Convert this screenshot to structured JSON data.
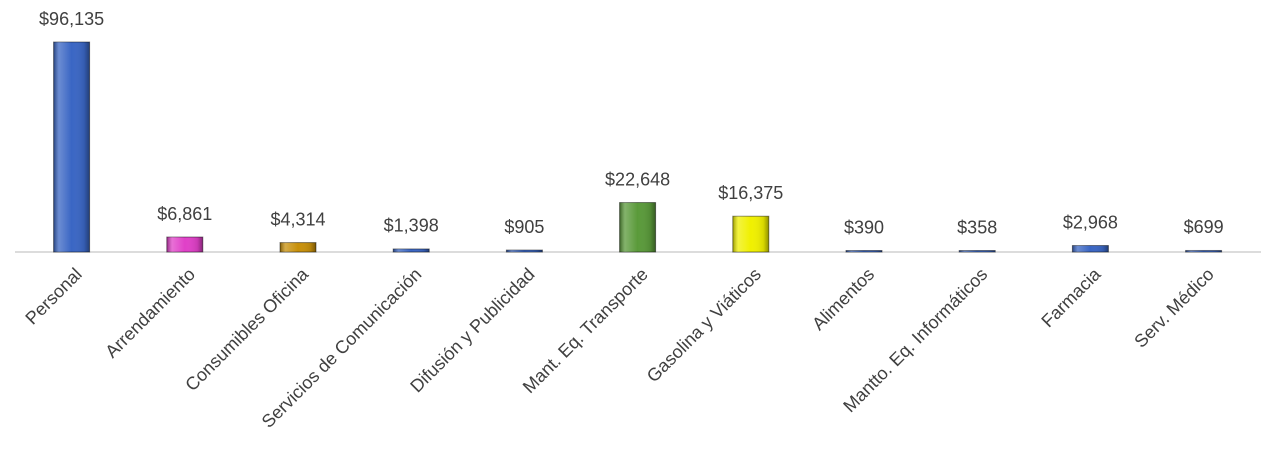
{
  "chart_data": {
    "type": "bar",
    "categories": [
      "Personal",
      "Arrendamiento",
      "Consumibles Oficina",
      "Servicios de Comunicación",
      "Difusión y Publicidad",
      "Mant. Eq. Transporte",
      "Gasolina y Viáticos",
      "Alimentos",
      "Mantto. Eq. Informáticos",
      "Farmacia",
      "Serv. Médico"
    ],
    "values": [
      96135,
      6861,
      4314,
      1398,
      905,
      22648,
      16375,
      390,
      358,
      2968,
      699
    ],
    "value_labels": [
      "$96,135",
      "$6,861",
      "$4,314",
      "$1,398",
      "$905",
      "$22,648",
      "$16,375",
      "$390",
      "$358",
      "$2,968",
      "$699"
    ],
    "colors": [
      "#3a66c4",
      "#e040c8",
      "#c8900a",
      "#3a66c4",
      "#3a66c4",
      "#5a9a3a",
      "#f0f000",
      "#3a66c4",
      "#3a66c4",
      "#3a66c4",
      "#3a66c4"
    ]
  }
}
